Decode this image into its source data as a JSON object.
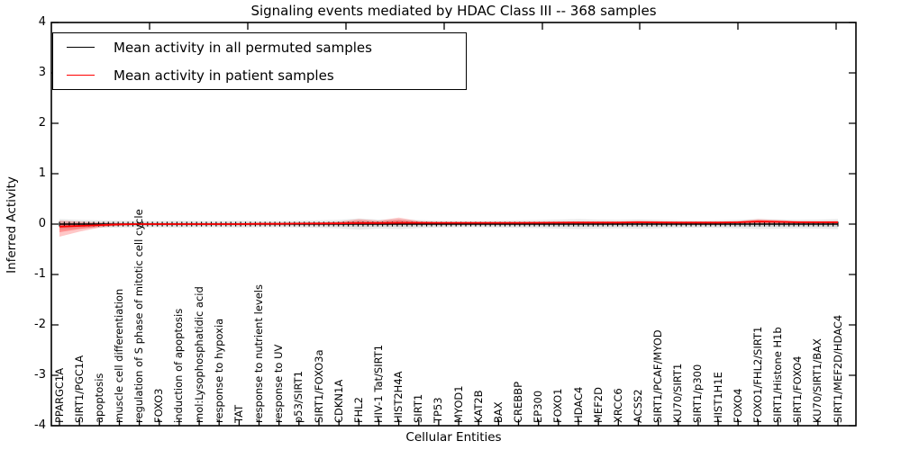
{
  "title": "Signaling events mediated by HDAC Class III -- 368 samples",
  "axes": {
    "xlabel": "Cellular Entities",
    "ylabel": "Inferred Activity",
    "yticks": [
      "4",
      "3",
      "2",
      "1",
      "0",
      "-1",
      "-2",
      "-3",
      "-4"
    ],
    "ylim": [
      -4,
      4
    ]
  },
  "legend": {
    "position": "upper left",
    "entries": [
      {
        "label": "Mean activity in all permuted samples",
        "color": "#000000"
      },
      {
        "label": "Mean activity in patient samples",
        "color": "#ff0000"
      }
    ]
  },
  "chart_data": {
    "type": "line",
    "title": "Signaling events mediated by HDAC Class III -- 368 samples",
    "xlabel": "Cellular Entities",
    "ylabel": "Inferred Activity",
    "ylim": [
      -4,
      4
    ],
    "grid": false,
    "legend_position": "upper left",
    "categories": [
      "PPARGC1A",
      "SIRT1/PGC1A",
      "apoptosis",
      "muscle cell differentiation",
      "regulation of S phase of mitotic cell cycle",
      "FOXO3",
      "induction of apoptosis",
      "mol:Lysophosphatidic acid",
      "response to hypoxia",
      "TAT",
      "response to nutrient levels",
      "response to UV",
      "p53/SIRT1",
      "SIRT1/FOXO3a",
      "CDKN1A",
      "FHL2",
      "HIV-1 Tat/SIRT1",
      "HIST2H4A",
      "SIRT1",
      "TP53",
      "MYOD1",
      "KAT2B",
      "BAX",
      "CREBBP",
      "EP300",
      "FOXO1",
      "HDAC4",
      "MEF2D",
      "XRCC6",
      "ACSS2",
      "SIRT1/PCAF/MYOD",
      "KU70/SIRT1",
      "SIRT1/p300",
      "HIST1H1E",
      "FOXO4",
      "FOXO1/FHL2/SIRT1",
      "SIRT1/Histone H1b",
      "SIRT1/FOXO4",
      "KU70/SIRT1/BAX",
      "SIRT1/MEF2D/HDAC4"
    ],
    "series": [
      {
        "name": "Mean activity in all permuted samples",
        "color": "#000000",
        "values": [
          0,
          0,
          0,
          0,
          0,
          0,
          0,
          0,
          0,
          0,
          0,
          0,
          0,
          0,
          0,
          0,
          0,
          0,
          0,
          0,
          0,
          0,
          0,
          0,
          0,
          0,
          0,
          0,
          0,
          0,
          0,
          0,
          0,
          0,
          0,
          0,
          0,
          0,
          0,
          0
        ]
      },
      {
        "name": "Mean activity in patient samples",
        "color": "#ff0000",
        "values": [
          -0.05,
          -0.035,
          -0.02,
          -0.005,
          0,
          0,
          0,
          0,
          0,
          0,
          0.005,
          0.005,
          0.01,
          0.012,
          0.015,
          0.02,
          0.02,
          0.025,
          0.025,
          0.025,
          0.025,
          0.025,
          0.025,
          0.025,
          0.027,
          0.028,
          0.03,
          0.03,
          0.03,
          0.035,
          0.032,
          0.03,
          0.03,
          0.03,
          0.035,
          0.05,
          0.045,
          0.035,
          0.035,
          0.035
        ]
      }
    ],
    "bands": [
      {
        "name": "Permuted samples activity spread",
        "color": "#000000",
        "opacity": 0.085,
        "upper": [
          0.1,
          0.085,
          0.075,
          0.07,
          0.065,
          0.065,
          0.07,
          0.065,
          0.065,
          0.07,
          0.065,
          0.065,
          0.07,
          0.075,
          0.085,
          0.11,
          0.09,
          0.1,
          0.08,
          0.07,
          0.065,
          0.065,
          0.07,
          0.075,
          0.08,
          0.09,
          0.1,
          0.09,
          0.085,
          0.095,
          0.085,
          0.075,
          0.07,
          0.075,
          0.085,
          0.1,
          0.095,
          0.085,
          0.09,
          0.1
        ],
        "lower": [
          -0.1,
          -0.085,
          -0.075,
          -0.07,
          -0.065,
          -0.065,
          -0.07,
          -0.065,
          -0.065,
          -0.07,
          -0.065,
          -0.065,
          -0.07,
          -0.075,
          -0.085,
          -0.11,
          -0.09,
          -0.1,
          -0.08,
          -0.07,
          -0.065,
          -0.065,
          -0.07,
          -0.075,
          -0.08,
          -0.09,
          -0.1,
          -0.09,
          -0.085,
          -0.095,
          -0.085,
          -0.075,
          -0.07,
          -0.075,
          -0.085,
          -0.1,
          -0.095,
          -0.085,
          -0.09,
          -0.1
        ]
      },
      {
        "name": "Patient samples activity spread",
        "color": "#ff0000",
        "opacity": 0.22,
        "upper": [
          0.07,
          0.05,
          0.03,
          0.02,
          0.015,
          0.015,
          0.015,
          0.015,
          0.015,
          0.015,
          0.015,
          0.02,
          0.025,
          0.03,
          0.05,
          0.1,
          0.07,
          0.13,
          0.06,
          0.04,
          0.04,
          0.04,
          0.04,
          0.045,
          0.045,
          0.05,
          0.05,
          0.05,
          0.05,
          0.065,
          0.055,
          0.05,
          0.05,
          0.05,
          0.06,
          0.1,
          0.08,
          0.06,
          0.055,
          0.06
        ],
        "lower": [
          -0.25,
          -0.15,
          -0.07,
          -0.03,
          -0.01,
          -0.01,
          -0.01,
          -0.01,
          -0.01,
          -0.01,
          -0.01,
          -0.01,
          0,
          0,
          0,
          -0.01,
          -0.01,
          -0.01,
          0,
          0.005,
          0.005,
          0.005,
          0.005,
          0.005,
          0.005,
          0.005,
          0.005,
          0.005,
          0.005,
          0.01,
          0.01,
          0.005,
          0.005,
          0.005,
          0.01,
          0.015,
          0.01,
          0.01,
          0.01,
          0.01
        ]
      }
    ]
  }
}
